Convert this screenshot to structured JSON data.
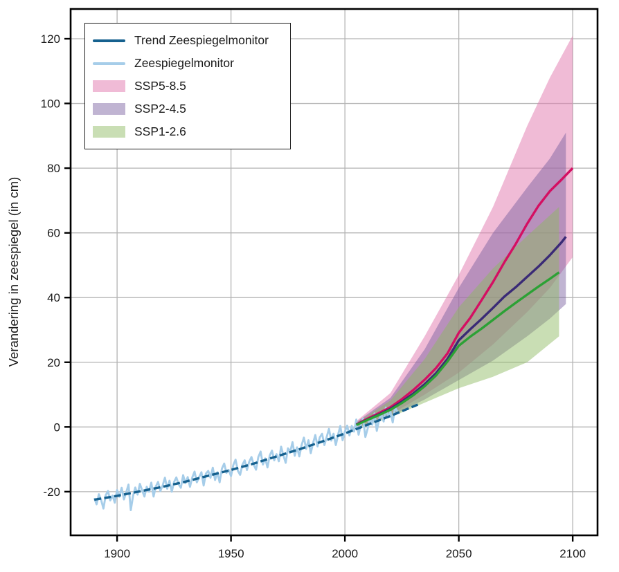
{
  "chart_data": {
    "type": "line",
    "title": "",
    "xlabel": "",
    "ylabel": "Verandering in zeespiegel (in cm)",
    "xlim": [
      1879.6,
      2110.9
    ],
    "ylim": [
      -33.5,
      129.2
    ],
    "x_ticks": [
      1900,
      1950,
      2000,
      2050,
      2100
    ],
    "y_ticks": [
      -20,
      0,
      20,
      40,
      60,
      80,
      100,
      120
    ],
    "grid": true,
    "grid_color": "#b3b3b3",
    "spine_color": "#000000",
    "legend_position": "upper-left",
    "legend": [
      {
        "label": "Trend Zeespiegelmonitor",
        "swatch": "line",
        "color": "#16618f"
      },
      {
        "label": "Zeespiegelmonitor",
        "swatch": "line",
        "color": "#a6cde9"
      },
      {
        "label": "SSP5-8.5",
        "swatch": "patch",
        "color": "rgba(226,124,176,0.52)"
      },
      {
        "label": "SSP2-4.5",
        "swatch": "patch",
        "color": "rgba(121,96,160,0.47)"
      },
      {
        "label": "SSP1-2.6",
        "swatch": "patch",
        "color": "rgba(141,185,96,0.47)"
      }
    ],
    "bands": [
      {
        "name": "ssp5-8.5-band",
        "label": "SSP5-8.5",
        "fill": "rgba(226,124,176,0.52)",
        "years": [
          2005,
          2020,
          2035,
          2050,
          2065,
          2080,
          2090,
          2100
        ],
        "upper": [
          1.8,
          10.5,
          28,
          47,
          68,
          93,
          108,
          121
        ],
        "lower": [
          0,
          3.8,
          10,
          16.8,
          25.5,
          35.5,
          43,
          52.5
        ]
      },
      {
        "name": "ssp2-4.5-band",
        "label": "SSP2-4.5",
        "fill": "rgba(121,96,160,0.47)",
        "years": [
          2005,
          2020,
          2035,
          2050,
          2065,
          2080,
          2090,
          2097
        ],
        "upper": [
          1.5,
          9,
          24,
          43,
          60,
          74,
          83,
          91
        ],
        "lower": [
          -0.3,
          3.3,
          8.5,
          14.5,
          20.5,
          28,
          33.5,
          38
        ]
      },
      {
        "name": "ssp1-2.6-band",
        "label": "SSP1-2.6",
        "fill": "rgba(141,185,96,0.47)",
        "years": [
          2005,
          2020,
          2035,
          2050,
          2065,
          2080,
          2094
        ],
        "upper": [
          1.3,
          8.2,
          21,
          37,
          49,
          59,
          68
        ],
        "lower": [
          -0.5,
          3,
          7.5,
          12,
          15.5,
          20,
          28
        ]
      }
    ],
    "series": [
      {
        "name": "zeespiegelmonitor",
        "label": "Zeespiegelmonitor",
        "color": "#a6cde9",
        "width": 2.9,
        "start_year": 1890,
        "values": [
          -22.0,
          -23.9,
          -20.8,
          -22.6,
          -25.2,
          -21.1,
          -19.8,
          -22.7,
          -21.2,
          -23.4,
          -19.5,
          -21.6,
          -18.8,
          -22.4,
          -20.2,
          -17.8,
          -25.7,
          -21.4,
          -18.7,
          -20.9,
          -17.6,
          -19.6,
          -21.5,
          -18.5,
          -20.0,
          -17.2,
          -21.5,
          -18.4,
          -17.0,
          -19.8,
          -18.1,
          -15.7,
          -19.1,
          -16.6,
          -20.0,
          -17.0,
          -15.6,
          -17.7,
          -18.8,
          -14.9,
          -17.4,
          -15.5,
          -18.5,
          -15.6,
          -13.8,
          -17.1,
          -15.5,
          -14.0,
          -18.1,
          -14.4,
          -13.6,
          -15.7,
          -12.6,
          -16.4,
          -14.0,
          -17.1,
          -12.9,
          -11.3,
          -14.2,
          -13.3,
          -15.2,
          -11.8,
          -10.1,
          -13.5,
          -14.8,
          -11.7,
          -10.3,
          -13.3,
          -10.8,
          -9.3,
          -11.7,
          -13.2,
          -9.3,
          -7.6,
          -11.6,
          -9.7,
          -12.5,
          -8.8,
          -7.3,
          -10.3,
          -8.4,
          -10.6,
          -6.1,
          -8.8,
          -11.1,
          -6.6,
          -7.6,
          -4.7,
          -8.9,
          -6.3,
          -9.1,
          -5.6,
          -3.3,
          -6.8,
          -4.1,
          -8.1,
          -5.0,
          -2.5,
          -6.0,
          -3.2,
          -2.1,
          -5.6,
          -3.1,
          -0.6,
          -4.2,
          -2.1,
          -5.6,
          -2.4,
          0.3,
          -4.1,
          -1.4,
          0.4,
          -2.6,
          0.3,
          -1.4,
          2.3,
          -2.4,
          0.7,
          2.6,
          -3.1,
          -0.5,
          2.8,
          0.7,
          4.2,
          -1.2,
          2.3,
          3.9,
          1.7,
          6.0,
          3.0,
          4.7,
          1.4,
          6.0,
          4.8
        ]
      },
      {
        "name": "trend-zeespiegelmonitor",
        "label": "Trend Zeespiegelmonitor",
        "color": "#16618f",
        "width": 3.4,
        "dash": "10 4.5",
        "points": [
          [
            1890,
            -22.5
          ],
          [
            1900,
            -21.3
          ],
          [
            1910,
            -19.9
          ],
          [
            1920,
            -18.5
          ],
          [
            1930,
            -16.9
          ],
          [
            1940,
            -15.1
          ],
          [
            1950,
            -13.3
          ],
          [
            1960,
            -11.3
          ],
          [
            1970,
            -9.1
          ],
          [
            1980,
            -6.9
          ],
          [
            1990,
            -4.5
          ],
          [
            2000,
            -2.0
          ],
          [
            2010,
            0.7
          ],
          [
            2020,
            3.4
          ],
          [
            2032,
            6.9
          ]
        ]
      },
      {
        "name": "ssp5-8.5-median",
        "label": "SSP5-8.5",
        "color": "#d40f62",
        "width": 3.4,
        "points": [
          [
            2005,
            0.8
          ],
          [
            2010,
            2.6
          ],
          [
            2015,
            4.3
          ],
          [
            2020,
            6.1
          ],
          [
            2025,
            8.6
          ],
          [
            2030,
            11.4
          ],
          [
            2035,
            14.6
          ],
          [
            2040,
            18.2
          ],
          [
            2045,
            22.7
          ],
          [
            2050,
            29.1
          ],
          [
            2055,
            33.7
          ],
          [
            2060,
            39.2
          ],
          [
            2065,
            44.8
          ],
          [
            2070,
            50.9
          ],
          [
            2075,
            56.6
          ],
          [
            2080,
            62.8
          ],
          [
            2085,
            68.4
          ],
          [
            2090,
            72.9
          ],
          [
            2095,
            76.4
          ],
          [
            2100,
            80.0
          ]
        ]
      },
      {
        "name": "ssp2-4.5-median",
        "label": "SSP2-4.5",
        "color": "#3a2a76",
        "width": 3.4,
        "points": [
          [
            2005,
            0.7
          ],
          [
            2010,
            2.3
          ],
          [
            2015,
            3.9
          ],
          [
            2020,
            5.6
          ],
          [
            2025,
            7.8
          ],
          [
            2030,
            10.3
          ],
          [
            2035,
            13.2
          ],
          [
            2040,
            16.6
          ],
          [
            2045,
            21.0
          ],
          [
            2050,
            26.8
          ],
          [
            2055,
            30.2
          ],
          [
            2060,
            33.4
          ],
          [
            2065,
            36.8
          ],
          [
            2070,
            40.3
          ],
          [
            2075,
            43.2
          ],
          [
            2080,
            46.4
          ],
          [
            2085,
            49.6
          ],
          [
            2090,
            53.1
          ],
          [
            2095,
            57.0
          ],
          [
            2097,
            58.8
          ]
        ]
      },
      {
        "name": "ssp1-2.6-median",
        "label": "SSP1-2.6",
        "color": "#2ca135",
        "width": 3.4,
        "points": [
          [
            2005,
            0.6
          ],
          [
            2010,
            2.2
          ],
          [
            2015,
            3.7
          ],
          [
            2020,
            5.3
          ],
          [
            2025,
            7.4
          ],
          [
            2030,
            9.8
          ],
          [
            2035,
            12.6
          ],
          [
            2040,
            15.9
          ],
          [
            2045,
            20.2
          ],
          [
            2050,
            25.1
          ],
          [
            2055,
            27.9
          ],
          [
            2060,
            30.4
          ],
          [
            2065,
            33.1
          ],
          [
            2070,
            35.8
          ],
          [
            2075,
            38.4
          ],
          [
            2080,
            40.9
          ],
          [
            2085,
            43.4
          ],
          [
            2090,
            45.8
          ],
          [
            2094,
            47.8
          ]
        ]
      }
    ]
  }
}
